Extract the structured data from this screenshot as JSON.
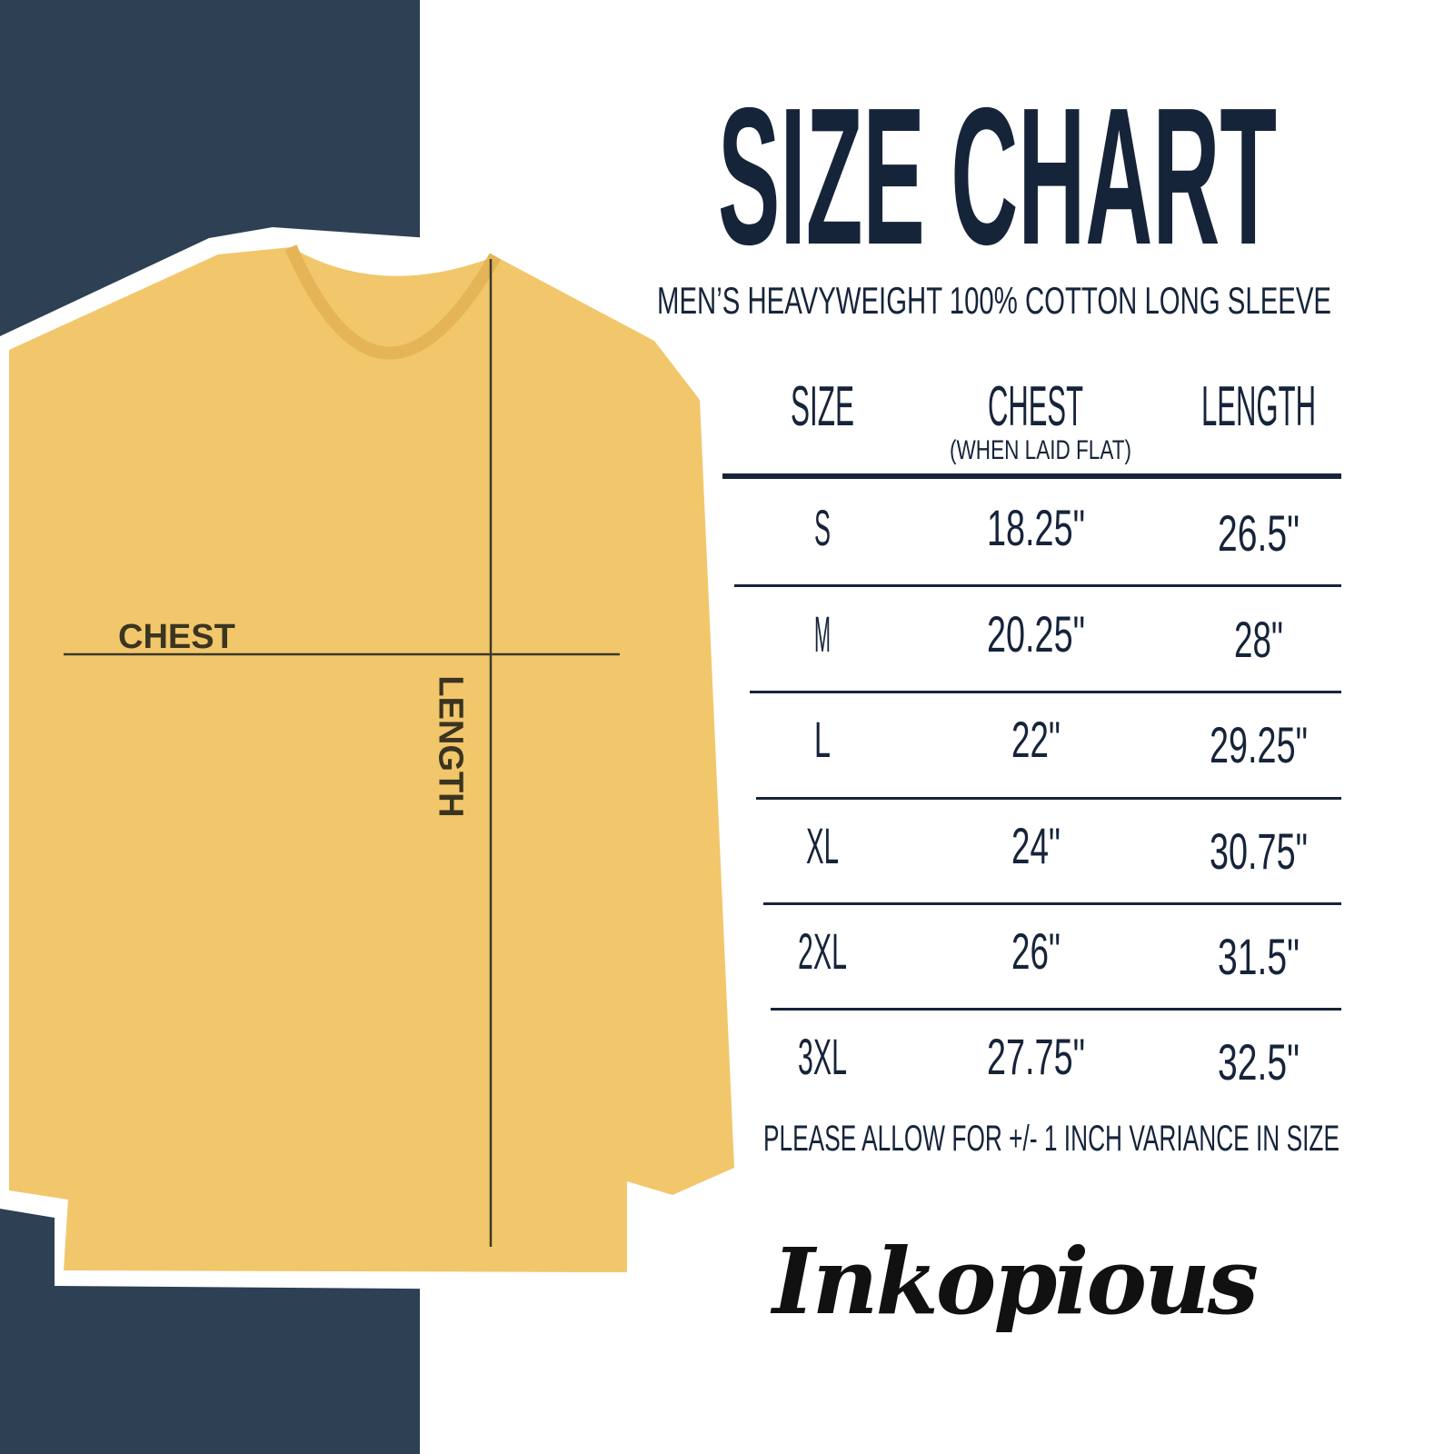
{
  "title": "SIZE CHART",
  "subtitle": "MEN’S HEAVYWEIGHT 100% COTTON LONG SLEEVE",
  "table": {
    "headers": [
      "SIZE",
      "CHEST",
      "LENGTH"
    ],
    "chest_note": "(WHEN LAID FLAT)",
    "rows": [
      [
        "S",
        "18.25\"",
        "26.5\""
      ],
      [
        "M",
        "20.25\"",
        "28\""
      ],
      [
        "L",
        "22\"",
        "29.25\""
      ],
      [
        "XL",
        "24\"",
        "30.75\""
      ],
      [
        "2XL",
        "26\"",
        "31.5\""
      ],
      [
        "3XL",
        "27.75\"",
        "32.5\""
      ]
    ]
  },
  "note": "PLEASE ALLOW FOR +/- 1 INCH VARIANCE IN SIZE",
  "diagram": {
    "chest_label": "CHEST",
    "length_label": "LENGTH"
  },
  "logo": "Inkopious",
  "colors": {
    "navy": "#16243a",
    "panel": "#2d4054",
    "shirt": "#f2c66a"
  }
}
